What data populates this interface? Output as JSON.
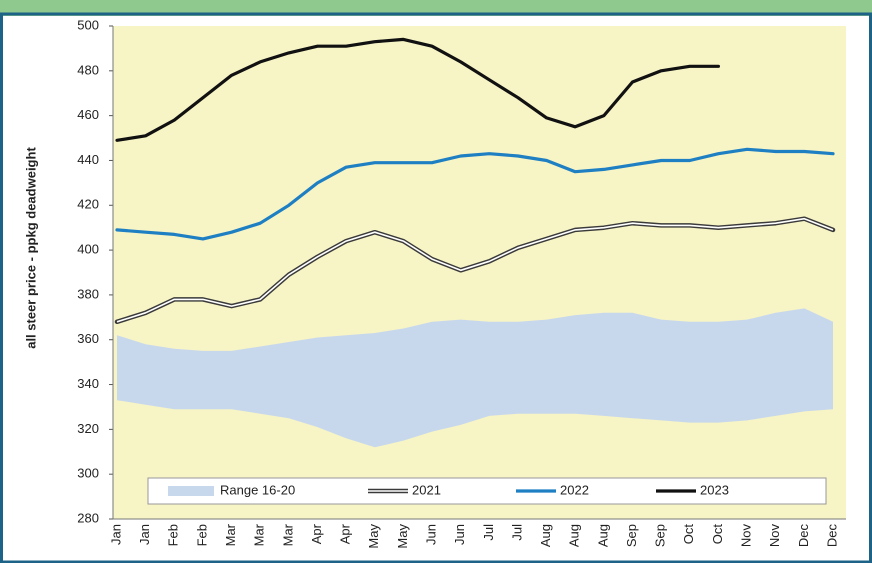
{
  "chart_data": {
    "type": "line",
    "y_label": "all steer price - ppkg deadweight",
    "categories": [
      "Jan",
      "Jan",
      "Feb",
      "Feb",
      "Mar",
      "Mar",
      "Mar",
      "Apr",
      "Apr",
      "May",
      "May",
      "Jun",
      "Jun",
      "Jul",
      "Jul",
      "Aug",
      "Aug",
      "Aug",
      "Sep",
      "Sep",
      "Oct",
      "Oct",
      "Nov",
      "Nov",
      "Dec",
      "Dec"
    ],
    "series": [
      {
        "name": "Range 16-20",
        "color": "#c8d8ec",
        "low": [
          333,
          331,
          329,
          329,
          329,
          327,
          325,
          321,
          316,
          312,
          315,
          319,
          322,
          326,
          327,
          327,
          327,
          326,
          325,
          324,
          323,
          323,
          324,
          326,
          328,
          329
        ],
        "high": [
          362,
          358,
          356,
          355,
          355,
          357,
          359,
          361,
          362,
          363,
          365,
          368,
          369,
          368,
          368,
          369,
          371,
          372,
          372,
          369,
          368,
          368,
          369,
          372,
          374,
          368
        ]
      },
      {
        "name": "2021",
        "color": "#3a3a3a",
        "style": "double",
        "values": [
          368,
          372,
          378,
          378,
          375,
          378,
          389,
          397,
          404,
          408,
          404,
          396,
          391,
          395,
          401,
          405,
          409,
          410,
          412,
          411,
          411,
          410,
          411,
          412,
          414,
          409
        ]
      },
      {
        "name": "2022",
        "color": "#1f7fc3",
        "values": [
          409,
          408,
          407,
          405,
          408,
          412,
          420,
          430,
          437,
          439,
          439,
          439,
          442,
          443,
          442,
          440,
          435,
          436,
          438,
          440,
          440,
          443,
          445,
          444,
          444,
          443
        ]
      },
      {
        "name": "2023",
        "color": "#111111",
        "values": [
          449,
          451,
          458,
          468,
          478,
          484,
          488,
          491,
          491,
          493,
          494,
          491,
          484,
          476,
          468,
          459,
          455,
          460,
          475,
          480,
          482,
          482,
          null,
          null,
          null,
          null
        ]
      }
    ],
    "ylim": [
      280,
      500
    ],
    "yticks": [
      280,
      300,
      320,
      340,
      360,
      380,
      400,
      420,
      440,
      460,
      480,
      500
    ],
    "legend": "bottom",
    "background": "#f7f4c6"
  }
}
